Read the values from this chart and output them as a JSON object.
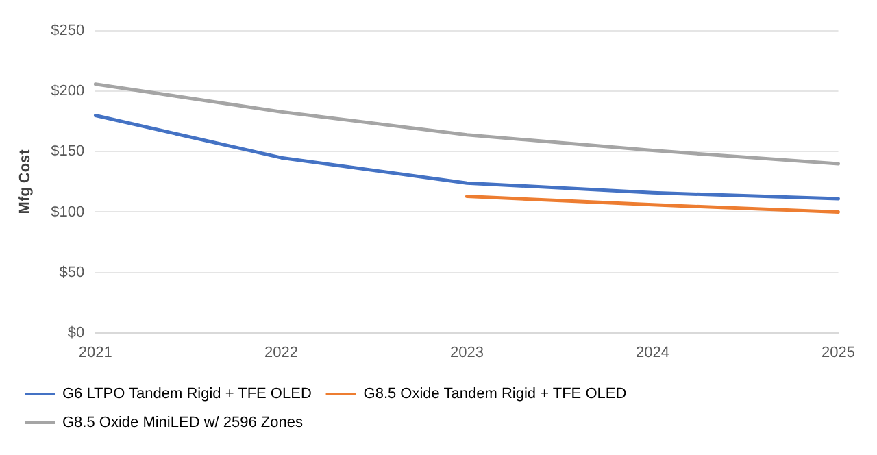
{
  "chart_data": {
    "type": "line",
    "ylabel": "Mfg Cost",
    "categories": [
      "2021",
      "2022",
      "2023",
      "2024",
      "2025"
    ],
    "series": [
      {
        "name": "G6 LTPO Tandem Rigid + TFE OLED",
        "color": "#4472c4",
        "values": [
          180,
          145,
          124,
          116,
          111
        ]
      },
      {
        "name": "G8.5 Oxide Tandem Rigid + TFE OLED",
        "color": "#ed7d31",
        "values": [
          null,
          null,
          113,
          106,
          100
        ]
      },
      {
        "name": "G8.5 Oxide MiniLED w/ 2596 Zones",
        "color": "#a5a5a5",
        "values": [
          206,
          183,
          164,
          151,
          140
        ]
      }
    ],
    "ylim": [
      0,
      250
    ],
    "yticks": [
      {
        "value": 0,
        "label": "$0"
      },
      {
        "value": 50,
        "label": "$50"
      },
      {
        "value": 100,
        "label": "$100"
      },
      {
        "value": 150,
        "label": "$150"
      },
      {
        "value": 200,
        "label": "$200"
      },
      {
        "value": 250,
        "label": "$250"
      }
    ],
    "grid": "y",
    "legend": "bottom",
    "marker": "none",
    "line_style": "solid"
  }
}
